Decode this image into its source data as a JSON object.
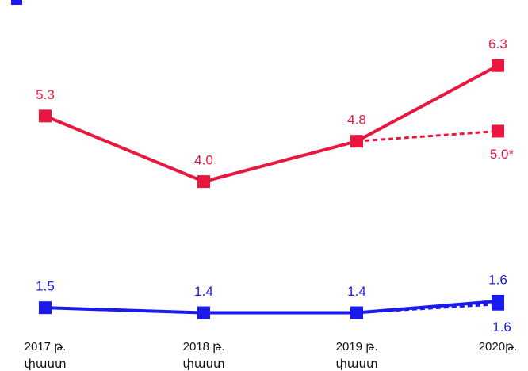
{
  "chart_data": {
    "type": "line",
    "categories": [
      "2017 թ.",
      "2018 թ.",
      "2019 թ.",
      "2020թ."
    ],
    "category_notes": [
      "փաստ",
      "փաստ",
      "փաստ",
      null
    ],
    "ylim": [
      1,
      6.5
    ],
    "series": [
      {
        "color": "#e8173f",
        "values": [
          5.3,
          4.0,
          4.8,
          6.3
        ],
        "value_labels": [
          "5.3",
          "4.0",
          "4.8",
          "6.3"
        ],
        "dashed": false
      },
      {
        "color": "#e8173f",
        "values": [
          null,
          null,
          4.8,
          5.0
        ],
        "value_labels": [
          null,
          null,
          null,
          "5.0*"
        ],
        "dashed": true
      },
      {
        "color": "#1a1aee",
        "values": [
          1.5,
          1.4,
          1.4,
          1.63
        ],
        "value_labels": [
          "1.5",
          "1.4",
          "1.4",
          "1.6"
        ],
        "dashed": false
      },
      {
        "color": "#1a1aee",
        "values": [
          null,
          null,
          1.4,
          1.57
        ],
        "value_labels": [
          null,
          null,
          null,
          "1.6"
        ],
        "dashed": true
      }
    ]
  }
}
